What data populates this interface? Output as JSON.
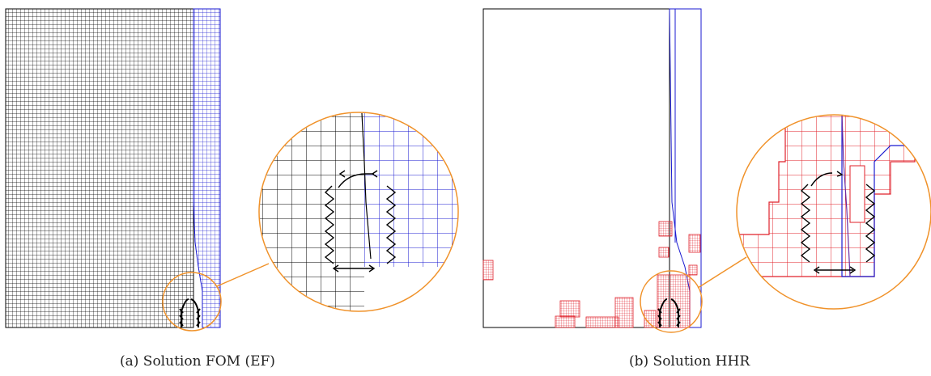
{
  "captions": {
    "a": "(a) Solution FOM (EF)",
    "b": "(b) Solution HHR"
  },
  "colors": {
    "mesh_black": "#000000",
    "mesh_blue": "#0000cc",
    "mesh_red": "#e0202a",
    "zoom_orange": "#f0922a"
  },
  "icons": [
    "cross-marker-icon",
    "arrow-icon"
  ]
}
